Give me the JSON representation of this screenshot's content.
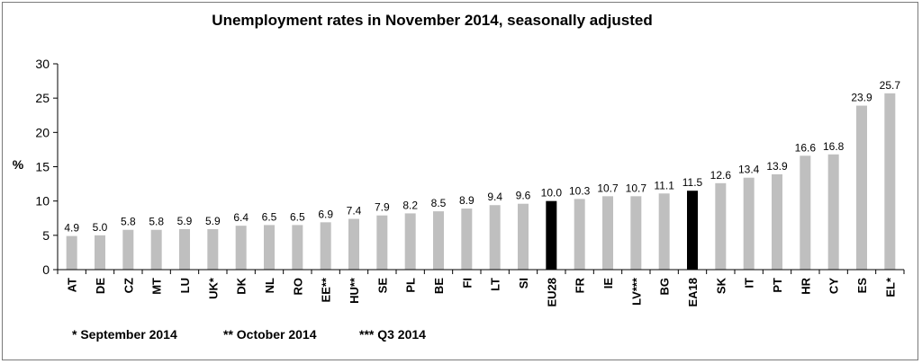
{
  "chart_data": {
    "type": "bar",
    "title": "Unemployment rates in November 2014, seasonally adjusted",
    "xlabel": "",
    "ylabel": "%",
    "ylim": [
      0,
      30
    ],
    "yticks": [
      "0",
      "5",
      "10",
      "15",
      "20",
      "25",
      "30"
    ],
    "grid": false,
    "categories": [
      "AT",
      "DE",
      "CZ",
      "MT",
      "LU",
      "UK*",
      "DK",
      "NL",
      "RO",
      "EE**",
      "HU**",
      "SE",
      "PL",
      "BE",
      "FI",
      "LT",
      "SI",
      "EU28",
      "FR",
      "IE",
      "LV***",
      "BG",
      "EA18",
      "SK",
      "IT",
      "PT",
      "HR",
      "CY",
      "ES",
      "EL*"
    ],
    "values": [
      4.9,
      5.0,
      5.8,
      5.8,
      5.9,
      5.9,
      6.4,
      6.5,
      6.5,
      6.9,
      7.4,
      7.9,
      8.2,
      8.5,
      8.9,
      9.4,
      9.6,
      10.0,
      10.3,
      10.7,
      10.7,
      11.1,
      11.5,
      12.6,
      13.4,
      13.9,
      16.6,
      16.8,
      23.9,
      25.7
    ],
    "value_labels": [
      "4.9",
      "5.0",
      "5.8",
      "5.8",
      "5.9",
      "5.9",
      "6.4",
      "6.5",
      "6.5",
      "6.9",
      "7.4",
      "7.9",
      "8.2",
      "8.5",
      "8.9",
      "9.4",
      "9.6",
      "10.0",
      "10.3",
      "10.7",
      "10.7",
      "11.1",
      "11.5",
      "12.6",
      "13.4",
      "13.9",
      "16.6",
      "16.8",
      "23.9",
      "25.7"
    ],
    "highlighted": [
      "EU28",
      "EA18"
    ],
    "colors": {
      "bar": "#bfbfbf",
      "highlight": "#000000",
      "axis": "#000000"
    },
    "footnotes": [
      "* September 2014",
      "** October 2014",
      "*** Q3 2014"
    ]
  }
}
